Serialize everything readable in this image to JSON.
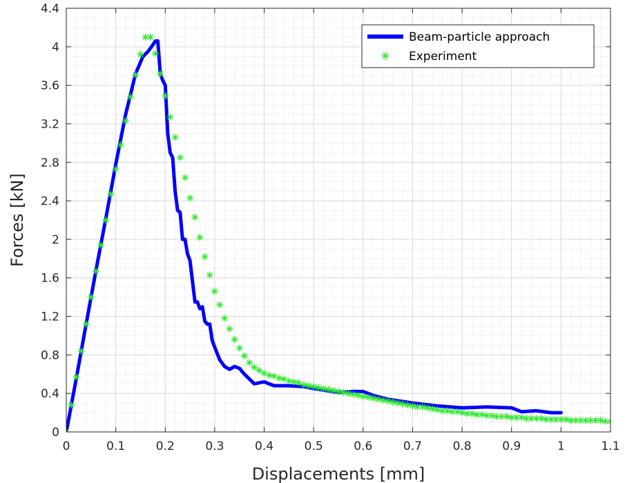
{
  "chart_data": {
    "type": "line",
    "title": "",
    "xlabel": "Displacements [mm]",
    "ylabel": "Forces [kN]",
    "xlim": [
      0,
      1.1
    ],
    "ylim": [
      0,
      4.4
    ],
    "xticks": [
      0,
      0.1,
      0.2,
      0.3,
      0.4,
      0.5,
      0.6,
      0.7,
      0.8,
      0.9,
      1,
      1.1
    ],
    "yticks": [
      0,
      0.4,
      0.8,
      1.2,
      1.6,
      2,
      2.4,
      2.8,
      3.2,
      3.6,
      4,
      4.4
    ],
    "xtick_labels": [
      "0",
      "0.1",
      "0.2",
      "0.3",
      "0.4",
      "0.5",
      "0.6",
      "0.7",
      "0.8",
      "0.9",
      "1",
      "1.1"
    ],
    "ytick_labels": [
      "0",
      "0.4",
      "0.8",
      "1.2",
      "1.6",
      "2",
      "2.4",
      "2.8",
      "3.2",
      "3.6",
      "4",
      "4.4"
    ],
    "grid": true,
    "minor_grid": true,
    "legend_position": "top-right",
    "series": [
      {
        "name": "Beam-particle approach",
        "style": "line",
        "color": "#0000ff",
        "x": [
          0,
          0.02,
          0.04,
          0.06,
          0.08,
          0.1,
          0.12,
          0.14,
          0.155,
          0.165,
          0.175,
          0.18,
          0.185,
          0.19,
          0.195,
          0.2,
          0.205,
          0.21,
          0.215,
          0.22,
          0.225,
          0.23,
          0.235,
          0.24,
          0.245,
          0.25,
          0.26,
          0.265,
          0.27,
          0.275,
          0.28,
          0.285,
          0.29,
          0.295,
          0.3,
          0.31,
          0.32,
          0.33,
          0.34,
          0.35,
          0.36,
          0.37,
          0.38,
          0.4,
          0.42,
          0.45,
          0.48,
          0.5,
          0.55,
          0.58,
          0.6,
          0.62,
          0.65,
          0.7,
          0.75,
          0.8,
          0.85,
          0.9,
          0.92,
          0.95,
          0.98,
          1.0
        ],
        "y": [
          0,
          0.55,
          1.12,
          1.68,
          2.22,
          2.78,
          3.3,
          3.72,
          3.9,
          3.95,
          4.02,
          4.06,
          4.06,
          3.72,
          3.65,
          3.6,
          3.1,
          2.9,
          2.85,
          2.5,
          2.3,
          2.28,
          2.0,
          2.0,
          1.85,
          1.78,
          1.35,
          1.35,
          1.28,
          1.3,
          1.15,
          1.12,
          1.12,
          0.95,
          0.88,
          0.75,
          0.68,
          0.65,
          0.68,
          0.66,
          0.6,
          0.55,
          0.5,
          0.52,
          0.48,
          0.48,
          0.47,
          0.45,
          0.41,
          0.42,
          0.42,
          0.38,
          0.34,
          0.3,
          0.27,
          0.25,
          0.26,
          0.25,
          0.21,
          0.22,
          0.2,
          0.2
        ]
      },
      {
        "name": "Experiment",
        "style": "marker",
        "marker": "*",
        "color": "#2ee82e",
        "x": [
          0,
          0.01,
          0.02,
          0.03,
          0.04,
          0.05,
          0.06,
          0.07,
          0.08,
          0.09,
          0.1,
          0.11,
          0.12,
          0.13,
          0.14,
          0.15,
          0.16,
          0.17,
          0.18,
          0.19,
          0.2,
          0.21,
          0.22,
          0.23,
          0.24,
          0.25,
          0.26,
          0.27,
          0.28,
          0.29,
          0.3,
          0.31,
          0.32,
          0.33,
          0.34,
          0.35,
          0.36,
          0.37,
          0.38,
          0.39,
          0.4,
          0.41,
          0.42,
          0.43,
          0.44,
          0.45,
          0.46,
          0.47,
          0.48,
          0.49,
          0.5,
          0.51,
          0.52,
          0.53,
          0.54,
          0.55,
          0.56,
          0.57,
          0.58,
          0.59,
          0.6,
          0.61,
          0.62,
          0.63,
          0.64,
          0.65,
          0.66,
          0.67,
          0.68,
          0.69,
          0.7,
          0.71,
          0.72,
          0.73,
          0.74,
          0.75,
          0.76,
          0.77,
          0.78,
          0.79,
          0.8,
          0.81,
          0.82,
          0.83,
          0.84,
          0.85,
          0.86,
          0.87,
          0.88,
          0.89,
          0.9,
          0.91,
          0.92,
          0.93,
          0.94,
          0.95,
          0.96,
          0.97,
          0.98,
          0.99,
          1.0,
          1.01,
          1.02,
          1.03,
          1.04,
          1.05,
          1.06,
          1.07,
          1.08,
          1.09,
          1.1
        ],
        "y": [
          0,
          0.28,
          0.57,
          0.84,
          1.12,
          1.4,
          1.67,
          1.94,
          2.2,
          2.47,
          2.73,
          2.98,
          3.23,
          3.48,
          3.71,
          3.92,
          4.1,
          4.1,
          3.93,
          3.72,
          3.49,
          3.27,
          3.06,
          2.85,
          2.64,
          2.43,
          2.23,
          2.02,
          1.82,
          1.63,
          1.46,
          1.32,
          1.18,
          1.07,
          0.96,
          0.87,
          0.79,
          0.72,
          0.67,
          0.64,
          0.61,
          0.59,
          0.58,
          0.56,
          0.55,
          0.53,
          0.52,
          0.51,
          0.49,
          0.48,
          0.47,
          0.46,
          0.45,
          0.44,
          0.43,
          0.42,
          0.41,
          0.4,
          0.39,
          0.38,
          0.37,
          0.36,
          0.35,
          0.34,
          0.33,
          0.32,
          0.31,
          0.3,
          0.29,
          0.28,
          0.27,
          0.26,
          0.26,
          0.25,
          0.24,
          0.23,
          0.22,
          0.22,
          0.21,
          0.21,
          0.2,
          0.19,
          0.19,
          0.18,
          0.18,
          0.17,
          0.17,
          0.16,
          0.16,
          0.16,
          0.15,
          0.15,
          0.15,
          0.14,
          0.14,
          0.14,
          0.14,
          0.13,
          0.13,
          0.13,
          0.13,
          0.13,
          0.12,
          0.12,
          0.12,
          0.12,
          0.12,
          0.12,
          0.12,
          0.11,
          0.11
        ]
      }
    ]
  }
}
